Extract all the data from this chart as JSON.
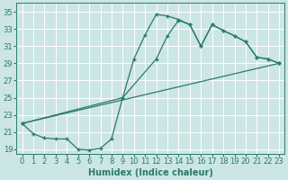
{
  "xlabel": "Humidex (Indice chaleur)",
  "bg_color": "#cce5e5",
  "grid_color": "#aacccc",
  "line_color": "#2a7a6a",
  "xlim": [
    -0.5,
    23.5
  ],
  "ylim": [
    18.5,
    36.0
  ],
  "xticks": [
    0,
    1,
    2,
    3,
    4,
    5,
    6,
    7,
    8,
    9,
    10,
    11,
    12,
    13,
    14,
    15,
    16,
    17,
    18,
    19,
    20,
    21,
    22,
    23
  ],
  "yticks": [
    19,
    21,
    23,
    25,
    27,
    29,
    31,
    33,
    35
  ],
  "line1_x": [
    0,
    1,
    2,
    3,
    4,
    5,
    6,
    7,
    8,
    9,
    10,
    11,
    12,
    13,
    14,
    15,
    16,
    17,
    18,
    19,
    20,
    21,
    22,
    23
  ],
  "line1_y": [
    22.0,
    20.8,
    20.3,
    20.2,
    20.2,
    19.0,
    18.9,
    19.1,
    20.2,
    25.0,
    29.5,
    32.3,
    34.7,
    34.5,
    34.1,
    33.5,
    31.0,
    33.5,
    32.8,
    32.2,
    31.5,
    29.7,
    29.5,
    29.0
  ],
  "line2_x": [
    0,
    23
  ],
  "line2_y": [
    22.0,
    29.0
  ],
  "line3_x": [
    0,
    9,
    12,
    13,
    14,
    15,
    16,
    17,
    18,
    19,
    20,
    21,
    22,
    23
  ],
  "line3_y": [
    22.0,
    25.0,
    29.5,
    32.2,
    34.0,
    33.5,
    31.0,
    33.5,
    32.8,
    32.2,
    31.5,
    29.7,
    29.5,
    29.0
  ],
  "tick_fontsize": 6,
  "xlabel_fontsize": 7
}
